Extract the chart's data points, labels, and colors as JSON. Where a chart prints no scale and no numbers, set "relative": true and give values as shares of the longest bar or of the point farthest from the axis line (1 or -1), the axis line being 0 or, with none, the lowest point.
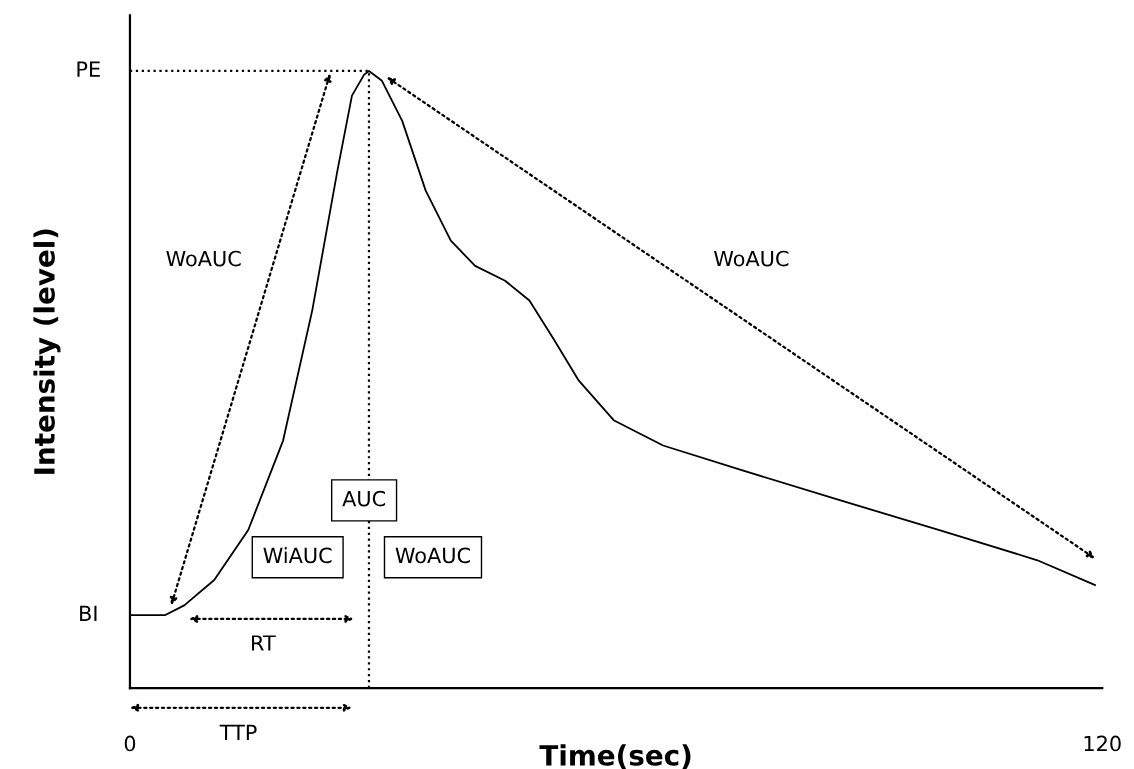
{
  "chart_data": {
    "type": "line",
    "relative": true,
    "xlabel": "Time(sec)",
    "ylabel": "Intensity (level)",
    "xlim": [
      0,
      120
    ],
    "xticks": [
      0,
      120
    ],
    "grid": false,
    "legend": false,
    "marker": "none",
    "series": [
      {
        "color": "#000000",
        "line_style": "solid",
        "x": [
          0,
          4.3,
          6.7,
          10.4,
          14.6,
          18.9,
          22.5,
          25.6,
          27.4,
          28.9,
          29.5,
          31.1,
          33.6,
          36.5,
          39.6,
          42.6,
          46.3,
          49.3,
          52.4,
          55.4,
          59.7,
          65.8,
          75.5,
          87.7,
          99.9,
          112,
          119.1
        ],
        "values": [
          0.118,
          0.118,
          0.134,
          0.175,
          0.256,
          0.401,
          0.612,
          0.838,
          0.96,
          0.994,
          1,
          0.984,
          0.919,
          0.806,
          0.725,
          0.684,
          0.66,
          0.628,
          0.563,
          0.498,
          0.434,
          0.393,
          0.353,
          0.304,
          0.256,
          0.207,
          0.167
        ]
      },
      {
        "color": "#000000",
        "line_style": "dotted",
        "x": [
          0,
          29.5
        ],
        "values": [
          1,
          1
        ]
      },
      {
        "color": "#000000",
        "line_style": "dotted",
        "x": [
          29.5,
          29.5
        ],
        "values": [
          0,
          1
        ]
      }
    ],
    "annotations": [
      {
        "text": "BI",
        "x": 0,
        "y": 0.118
      },
      {
        "text": "PE",
        "x": 0,
        "y": 1
      },
      "WoAUC",
      "WoAUC",
      "AUC",
      "WiAUC",
      "WoAUC",
      "RT",
      "TTP"
    ]
  }
}
